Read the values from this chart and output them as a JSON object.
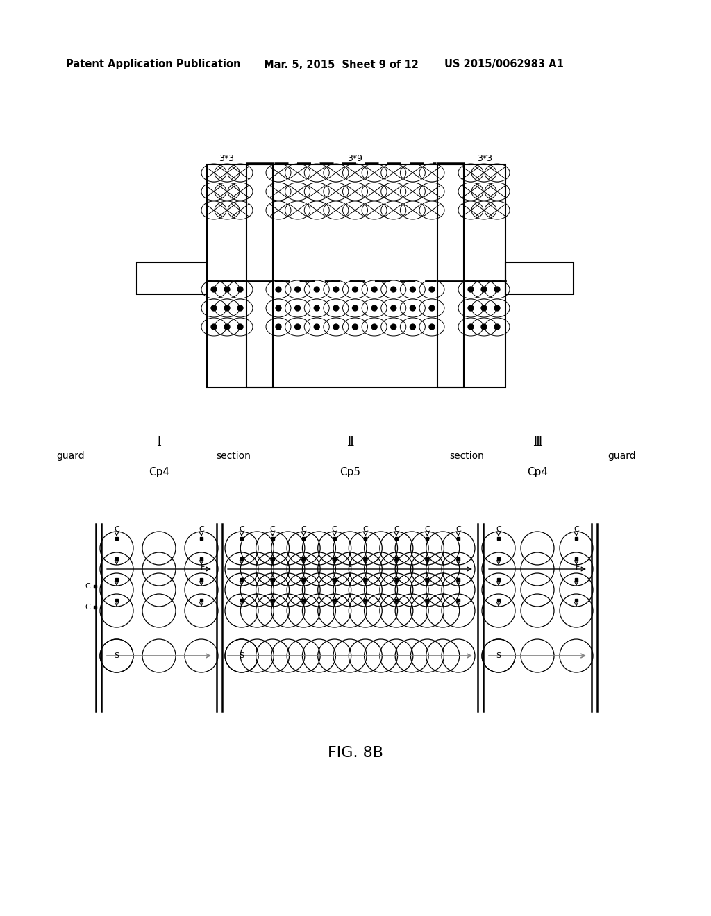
{
  "bg_color": "#ffffff",
  "header_text": "Patent Application Publication",
  "header_date": "Mar. 5, 2015  Sheet 9 of 12",
  "header_patent": "US 2015/0062983 A1",
  "fig_label": "FIG. 8B",
  "top_labels": [
    "3*3",
    "3*9",
    "3*3"
  ],
  "section_labels": [
    "Ⅰ",
    "Ⅱ",
    "Ⅲ"
  ],
  "guard_label": "guard",
  "section_word": "section",
  "cp4_label": "Cp4",
  "cp5_label": "Cp5"
}
